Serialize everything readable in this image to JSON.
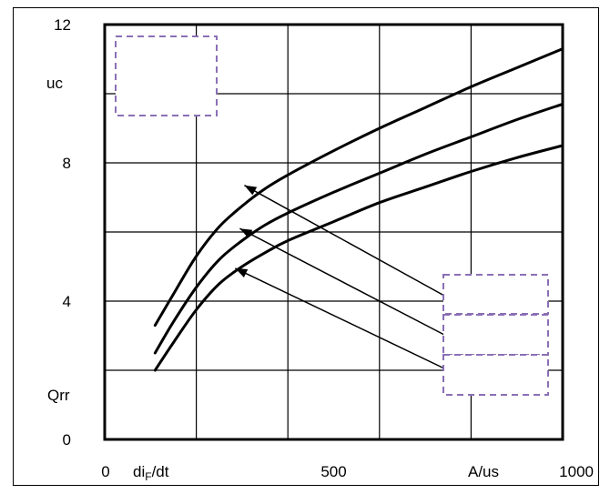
{
  "chart_data": {
    "type": "line",
    "title": "",
    "xlabel": "diF/dt",
    "xlabel_main": "di",
    "xlabel_sub": "F",
    "xlabel_tail": "/dt",
    "xunit": "A/us",
    "ylabel": "Qrr",
    "yunit": "uc",
    "xlim": [
      0,
      1000
    ],
    "ylim": [
      0,
      12
    ],
    "x_ticks": [
      0,
      200,
      400,
      600,
      800,
      1000
    ],
    "y_ticks": [
      0,
      2,
      4,
      6,
      8,
      10,
      12
    ],
    "x_tick_labels": [
      {
        "x": 0,
        "label": "0"
      },
      {
        "x": 500,
        "label": "500"
      },
      {
        "x": 1000,
        "label": "1000"
      }
    ],
    "y_tick_labels": [
      {
        "y": 0,
        "label": "0"
      },
      {
        "y": 4,
        "label": "4"
      },
      {
        "y": 8,
        "label": "8"
      },
      {
        "y": 12,
        "label": "12"
      }
    ],
    "grid": true,
    "series": [
      {
        "x": [
          110,
          150,
          200,
          250,
          300,
          350,
          400,
          500,
          600,
          700,
          800,
          900,
          1000
        ],
        "y": [
          3.3,
          4.2,
          5.3,
          6.15,
          6.75,
          7.25,
          7.65,
          8.35,
          9.0,
          9.6,
          10.2,
          10.75,
          11.3
        ]
      },
      {
        "x": [
          110,
          150,
          200,
          250,
          300,
          350,
          400,
          500,
          600,
          700,
          800,
          900,
          1000
        ],
        "y": [
          2.5,
          3.4,
          4.4,
          5.2,
          5.75,
          6.2,
          6.55,
          7.15,
          7.7,
          8.25,
          8.75,
          9.25,
          9.7
        ]
      },
      {
        "x": [
          110,
          150,
          200,
          250,
          300,
          350,
          400,
          500,
          600,
          700,
          800,
          900,
          1000
        ],
        "y": [
          2.0,
          2.8,
          3.75,
          4.5,
          5.0,
          5.4,
          5.75,
          6.3,
          6.85,
          7.3,
          7.75,
          8.15,
          8.5
        ]
      }
    ],
    "annotations": [
      {
        "series_index": 0,
        "x": 305,
        "y": 7.35
      },
      {
        "series_index": 1,
        "x": 295,
        "y": 6.1
      },
      {
        "series_index": 2,
        "x": 285,
        "y": 4.95
      }
    ],
    "placeholder_boxes": 4,
    "colors": {
      "axis": "#000000",
      "grid": "#000000",
      "curve": "#000000",
      "placeholder_border": "#8a6fb6"
    }
  }
}
